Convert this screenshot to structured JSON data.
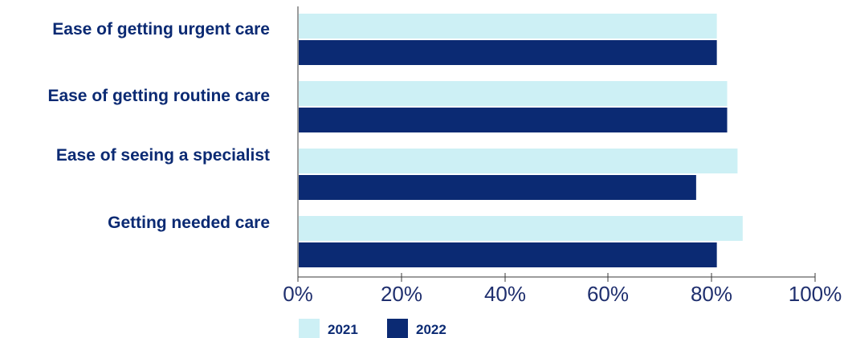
{
  "chart_data": {
    "type": "bar",
    "orientation": "horizontal",
    "title": "",
    "xlabel": "",
    "ylabel": "",
    "categories": [
      "Ease of getting urgent care",
      "Ease of getting routine care",
      "Ease of seeing a specialist",
      "Getting needed care"
    ],
    "series": [
      {
        "name": "2021",
        "color": "#cdf0f5",
        "values": [
          81,
          83,
          85,
          86
        ]
      },
      {
        "name": "2022",
        "color": "#0b2a73",
        "values": [
          81,
          83,
          77,
          81
        ]
      }
    ],
    "xlim": [
      0,
      100
    ],
    "ticks": [
      "0%",
      "20%",
      "40%",
      "60%",
      "80%",
      "100%"
    ],
    "grid": false,
    "legend": "bottom"
  }
}
